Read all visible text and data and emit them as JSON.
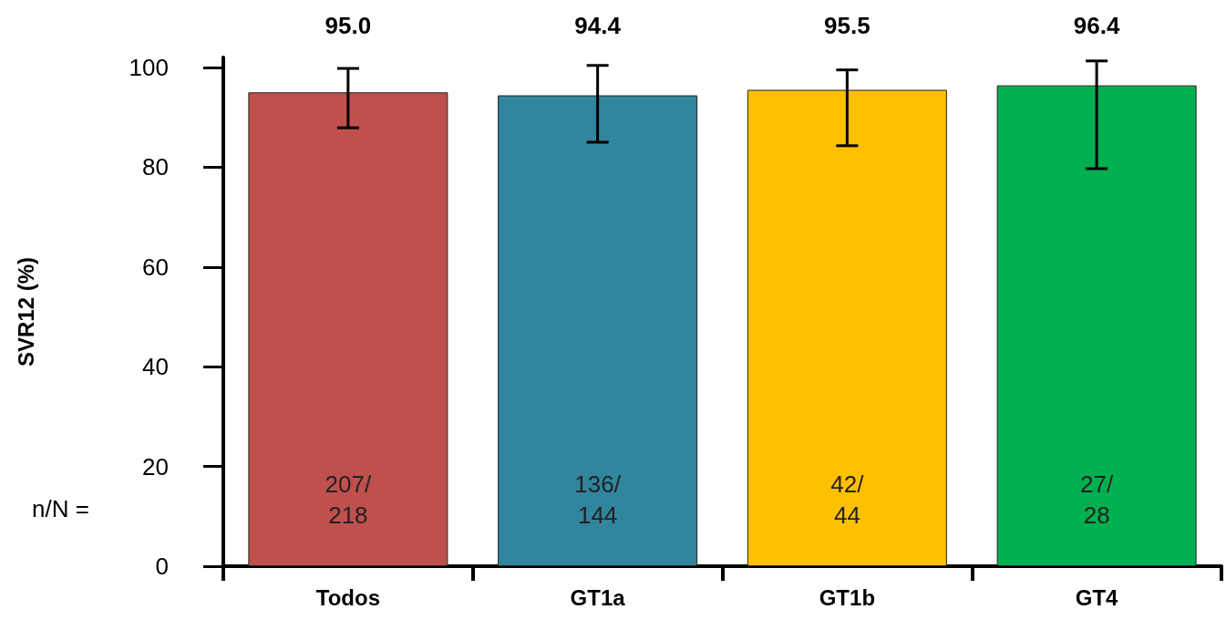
{
  "chart_data": {
    "type": "bar",
    "ylabel": "SVR12 (%)",
    "categories": [
      "Todos",
      "GT1a",
      "GT1b",
      "GT4"
    ],
    "values": [
      95.0,
      94.4,
      95.5,
      96.4
    ],
    "value_labels": [
      "95.0",
      "94.4",
      "95.5",
      "96.4"
    ],
    "colors": [
      "#c0504d",
      "#31859c",
      "#ffc000",
      "#00b050"
    ],
    "errors": [
      [
        87.9,
        99.8
      ],
      [
        85.0,
        100.4
      ],
      [
        84.3,
        99.5
      ],
      [
        79.7,
        101.3
      ]
    ],
    "ylim": [
      0,
      102
    ],
    "yticks": [
      0,
      20,
      40,
      60,
      80,
      100
    ],
    "grid": false,
    "annotations": [
      "n/N =",
      "207/\n218",
      "136/\n144",
      "42/\n44",
      "27/\n28"
    ]
  }
}
